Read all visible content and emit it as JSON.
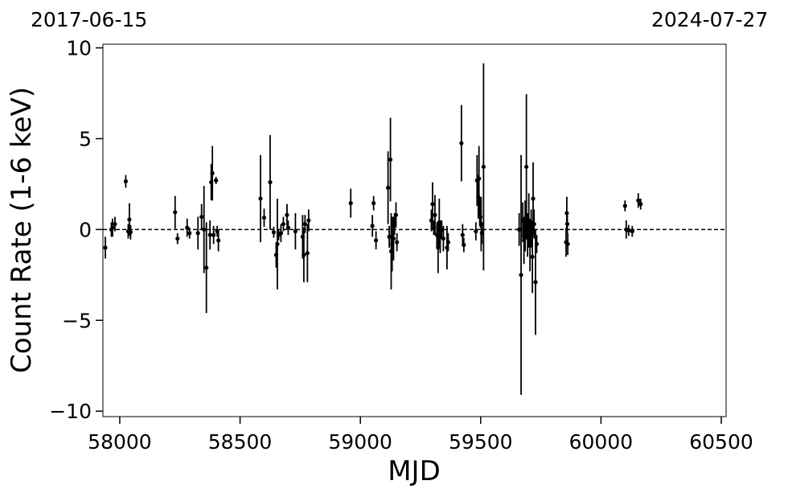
{
  "chart_data": {
    "type": "scatter",
    "title": "",
    "xlabel": "MJD",
    "ylabel": "Count Rate (1-6 keV)",
    "xlim": [
      57930,
      60520
    ],
    "ylim": [
      -10.3,
      10.2
    ],
    "xticks": [
      58000,
      58500,
      59000,
      59500,
      60000,
      60500
    ],
    "xtick_labels": [
      "58000",
      "58500",
      "59000",
      "59500",
      "60000",
      "60500"
    ],
    "yticks": [
      -10,
      -5,
      0,
      5,
      10
    ],
    "ytick_labels": [
      "−10",
      "−5",
      "0",
      "5",
      "10"
    ],
    "top_left_label": "2017-06-15",
    "top_right_label": "2024-07-27",
    "reference_line": {
      "y": 0,
      "style": "dashed"
    },
    "marker_color": "#000000",
    "grid": false,
    "legend": "none",
    "series": [
      {
        "points": [
          {
            "x": 57940,
            "y": -1.0,
            "err": 0.6
          },
          {
            "x": 57965,
            "y": 0.0,
            "err": 0.4
          },
          {
            "x": 57970,
            "y": 0.1,
            "err": 0.5
          },
          {
            "x": 57980,
            "y": 0.3,
            "err": 0.4
          },
          {
            "x": 58025,
            "y": 2.65,
            "err": 0.35
          },
          {
            "x": 58035,
            "y": -0.1,
            "err": 0.4
          },
          {
            "x": 58040,
            "y": 0.55,
            "err": 0.9
          },
          {
            "x": 58045,
            "y": -0.15,
            "err": 0.4
          },
          {
            "x": 58230,
            "y": 0.95,
            "err": 0.9
          },
          {
            "x": 58240,
            "y": -0.5,
            "err": 0.3
          },
          {
            "x": 58280,
            "y": 0.1,
            "err": 0.5
          },
          {
            "x": 58290,
            "y": -0.2,
            "err": 0.3
          },
          {
            "x": 58325,
            "y": -0.2,
            "err": 0.9
          },
          {
            "x": 58340,
            "y": 0.7,
            "err": 0.7
          },
          {
            "x": 58350,
            "y": 0.0,
            "err": 2.4
          },
          {
            "x": 58360,
            "y": -2.1,
            "err": 2.5
          },
          {
            "x": 58375,
            "y": -0.3,
            "err": 0.8
          },
          {
            "x": 58380,
            "y": 2.6,
            "err": 1.0
          },
          {
            "x": 58385,
            "y": 3.1,
            "err": 1.5
          },
          {
            "x": 58390,
            "y": -0.3,
            "err": 0.5
          },
          {
            "x": 58400,
            "y": 2.7,
            "err": 0.2
          },
          {
            "x": 58405,
            "y": -0.1,
            "err": 0.3
          },
          {
            "x": 58410,
            "y": -0.6,
            "err": 0.6
          },
          {
            "x": 58585,
            "y": 1.7,
            "err": 2.4
          },
          {
            "x": 58600,
            "y": 0.65,
            "err": 0.5
          },
          {
            "x": 58625,
            "y": 2.6,
            "err": 2.6
          },
          {
            "x": 58640,
            "y": -0.15,
            "err": 0.3
          },
          {
            "x": 58650,
            "y": -1.4,
            "err": 0.7
          },
          {
            "x": 58655,
            "y": -0.8,
            "err": 2.5
          },
          {
            "x": 58660,
            "y": -0.3,
            "err": 0.3
          },
          {
            "x": 58670,
            "y": -0.2,
            "err": 0.5
          },
          {
            "x": 58680,
            "y": 0.3,
            "err": 0.4
          },
          {
            "x": 58695,
            "y": 0.8,
            "err": 0.6
          },
          {
            "x": 58700,
            "y": 0.1,
            "err": 0.4
          },
          {
            "x": 58730,
            "y": -0.1,
            "err": 1.0
          },
          {
            "x": 58760,
            "y": -0.4,
            "err": 1.2
          },
          {
            "x": 58765,
            "y": -1.4,
            "err": 1.5
          },
          {
            "x": 58770,
            "y": 0.3,
            "err": 0.5
          },
          {
            "x": 58780,
            "y": -1.3,
            "err": 1.6
          },
          {
            "x": 58785,
            "y": 0.5,
            "err": 0.6
          },
          {
            "x": 58960,
            "y": 1.45,
            "err": 0.8
          },
          {
            "x": 59050,
            "y": 0.2,
            "err": 0.6
          },
          {
            "x": 59055,
            "y": 1.45,
            "err": 0.4
          },
          {
            "x": 59065,
            "y": -0.6,
            "err": 0.5
          },
          {
            "x": 59115,
            "y": 2.3,
            "err": 2.0
          },
          {
            "x": 59120,
            "y": -0.4,
            "err": 0.6
          },
          {
            "x": 59125,
            "y": 3.85,
            "err": 2.3
          },
          {
            "x": 59128,
            "y": -1.2,
            "err": 2.1
          },
          {
            "x": 59132,
            "y": -0.8,
            "err": 1.5
          },
          {
            "x": 59138,
            "y": -0.5,
            "err": 1.2
          },
          {
            "x": 59142,
            "y": 0.3,
            "err": 0.6
          },
          {
            "x": 59148,
            "y": 0.8,
            "err": 0.7
          },
          {
            "x": 59152,
            "y": -0.7,
            "err": 0.5
          },
          {
            "x": 59295,
            "y": 0.5,
            "err": 0.6
          },
          {
            "x": 59300,
            "y": 1.4,
            "err": 1.2
          },
          {
            "x": 59305,
            "y": 0.1,
            "err": 0.4
          },
          {
            "x": 59310,
            "y": 0.8,
            "err": 1.1
          },
          {
            "x": 59318,
            "y": -0.3,
            "err": 0.7
          },
          {
            "x": 59323,
            "y": -1.0,
            "err": 1.4
          },
          {
            "x": 59328,
            "y": 0.4,
            "err": 1.3
          },
          {
            "x": 59332,
            "y": -0.4,
            "err": 0.9
          },
          {
            "x": 59338,
            "y": 0.0,
            "err": 0.5
          },
          {
            "x": 59345,
            "y": -0.5,
            "err": 0.7
          },
          {
            "x": 59360,
            "y": -1.0,
            "err": 1.2
          },
          {
            "x": 59365,
            "y": -0.7,
            "err": 0.5
          },
          {
            "x": 59420,
            "y": 4.75,
            "err": 2.1
          },
          {
            "x": 59425,
            "y": -0.3,
            "err": 0.6
          },
          {
            "x": 59430,
            "y": -0.85,
            "err": 0.4
          },
          {
            "x": 59480,
            "y": -0.1,
            "err": 0.5
          },
          {
            "x": 59485,
            "y": 2.7,
            "err": 1.4
          },
          {
            "x": 59490,
            "y": 1.8,
            "err": 1.2
          },
          {
            "x": 59493,
            "y": 2.8,
            "err": 1.8
          },
          {
            "x": 59496,
            "y": 1.0,
            "err": 0.8
          },
          {
            "x": 59499,
            "y": 0.7,
            "err": 0.6
          },
          {
            "x": 59502,
            "y": 0.3,
            "err": 1.5
          },
          {
            "x": 59505,
            "y": -0.2,
            "err": 0.6
          },
          {
            "x": 59512,
            "y": 3.45,
            "err": 5.7
          },
          {
            "x": 59660,
            "y": 0.0,
            "err": 0.9
          },
          {
            "x": 59668,
            "y": -2.5,
            "err": 6.6
          },
          {
            "x": 59675,
            "y": 0.5,
            "err": 1.0
          },
          {
            "x": 59680,
            "y": -0.6,
            "err": 1.3
          },
          {
            "x": 59685,
            "y": 0.2,
            "err": 1.4
          },
          {
            "x": 59690,
            "y": 3.45,
            "err": 4.0
          },
          {
            "x": 59695,
            "y": -0.3,
            "err": 1.2
          },
          {
            "x": 59700,
            "y": 0.5,
            "err": 1.5
          },
          {
            "x": 59705,
            "y": -0.9,
            "err": 1.4
          },
          {
            "x": 59710,
            "y": 0.1,
            "err": 1.0
          },
          {
            "x": 59715,
            "y": -1.5,
            "err": 2.0
          },
          {
            "x": 59718,
            "y": 1.7,
            "err": 2.0
          },
          {
            "x": 59722,
            "y": 0.3,
            "err": 0.8
          },
          {
            "x": 59728,
            "y": -2.9,
            "err": 2.9
          },
          {
            "x": 59733,
            "y": -0.8,
            "err": 0.5
          },
          {
            "x": 59855,
            "y": -0.7,
            "err": 0.8
          },
          {
            "x": 59858,
            "y": 0.9,
            "err": 0.9
          },
          {
            "x": 59860,
            "y": 0.3,
            "err": 0.5
          },
          {
            "x": 59862,
            "y": -0.8,
            "err": 0.6
          },
          {
            "x": 60100,
            "y": 1.3,
            "err": 0.3
          },
          {
            "x": 60105,
            "y": 0.0,
            "err": 0.5
          },
          {
            "x": 60115,
            "y": -0.05,
            "err": 0.3
          },
          {
            "x": 60130,
            "y": -0.1,
            "err": 0.3
          },
          {
            "x": 60155,
            "y": 1.6,
            "err": 0.4
          },
          {
            "x": 60165,
            "y": 1.4,
            "err": 0.3
          }
        ]
      }
    ]
  }
}
